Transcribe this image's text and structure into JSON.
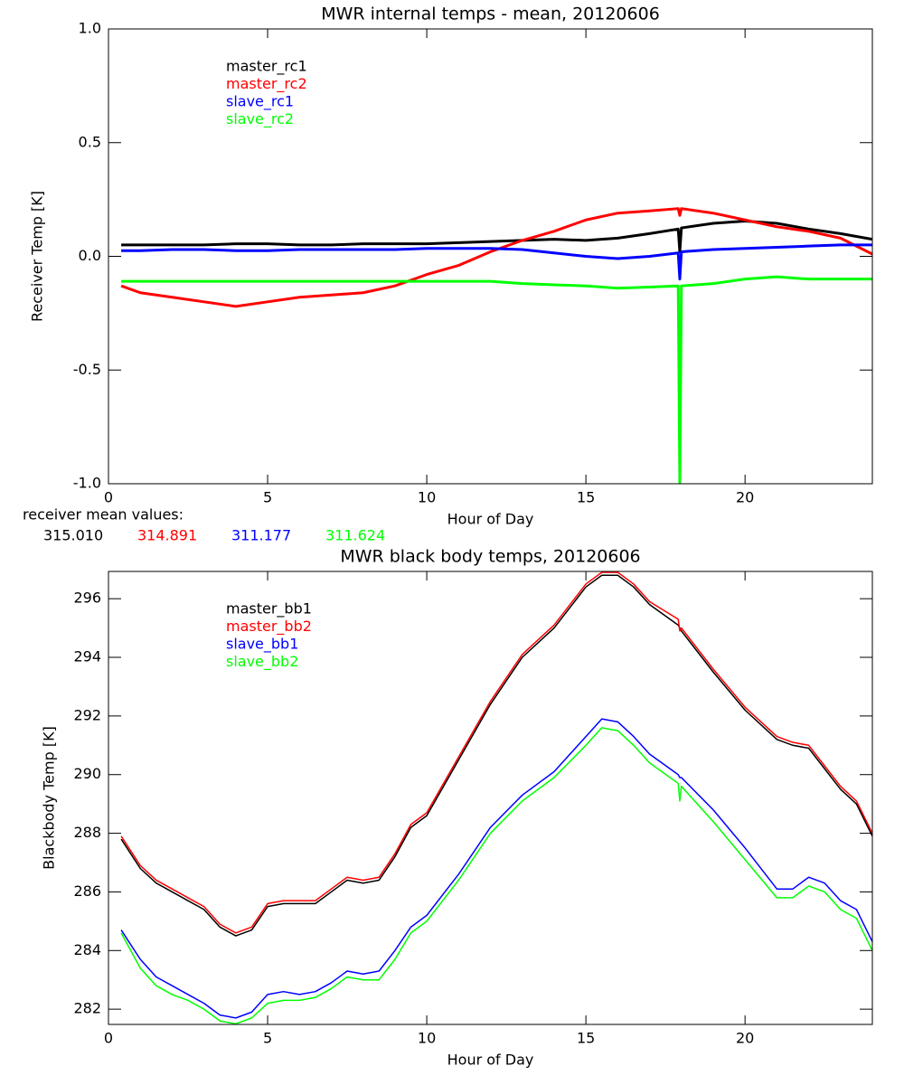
{
  "chart_data": [
    {
      "type": "line",
      "title": "MWR internal temps - mean, 20120606",
      "x_label": "Hour of Day",
      "y_label": "Receiver Temp [K]",
      "xlim": [
        0,
        24
      ],
      "xticks": [
        0,
        5,
        10,
        15,
        20
      ],
      "ylim": [
        -1,
        1
      ],
      "yticks": [
        {
          "value": 1,
          "label": "1.0"
        },
        {
          "value": 0.5,
          "label": "0.5"
        },
        {
          "value": 0,
          "label": "0.0"
        },
        {
          "value": -0.5,
          "label": "-0.5"
        },
        {
          "value": -1,
          "label": "-1.0"
        }
      ],
      "legend": "upper left",
      "x": [
        0.4,
        1,
        2,
        3,
        4,
        5,
        6,
        7,
        8,
        9,
        10,
        11,
        12,
        13,
        14,
        15,
        16,
        17,
        17.9,
        17.95,
        18,
        19,
        20,
        21,
        22,
        23,
        24
      ],
      "series": [
        {
          "name": "master_rc1",
          "color": "#000000",
          "values": [
            0.05,
            0.05,
            0.05,
            0.05,
            0.055,
            0.055,
            0.05,
            0.05,
            0.055,
            0.055,
            0.055,
            0.06,
            0.065,
            0.07,
            0.075,
            0.07,
            0.08,
            0.1,
            0.12,
            0.02,
            0.125,
            0.145,
            0.155,
            0.145,
            0.12,
            0.1,
            0.075
          ]
        },
        {
          "name": "master_rc2",
          "color": "#ff0000",
          "values": [
            -0.13,
            -0.16,
            -0.18,
            -0.2,
            -0.22,
            -0.2,
            -0.18,
            -0.17,
            -0.16,
            -0.13,
            -0.08,
            -0.04,
            0.02,
            0.07,
            0.11,
            0.16,
            0.19,
            0.2,
            0.21,
            0.18,
            0.21,
            0.19,
            0.16,
            0.13,
            0.11,
            0.08,
            0.01
          ]
        },
        {
          "name": "slave_rc1",
          "color": "#0000ff",
          "values": [
            0.025,
            0.025,
            0.03,
            0.03,
            0.025,
            0.025,
            0.03,
            0.03,
            0.03,
            0.03,
            0.035,
            0.035,
            0.035,
            0.03,
            0.015,
            0,
            -0.01,
            0,
            0.015,
            -0.1,
            0.02,
            0.03,
            0.035,
            0.04,
            0.045,
            0.05,
            0.05
          ]
        },
        {
          "name": "slave_rc2",
          "color": "#00ff00",
          "values": [
            -0.11,
            -0.11,
            -0.11,
            -0.11,
            -0.11,
            -0.11,
            -0.11,
            -0.11,
            -0.11,
            -0.11,
            -0.11,
            -0.11,
            -0.11,
            -0.12,
            -0.125,
            -0.13,
            -0.14,
            -0.135,
            -0.13,
            -1.0,
            -0.13,
            -0.12,
            -0.1,
            -0.09,
            -0.1,
            -0.1,
            -0.1
          ]
        }
      ],
      "receiver_means": {
        "label": "receiver mean values:",
        "values": [
          315.01,
          314.891,
          311.177,
          311.624
        ],
        "value_labels": [
          "315.010",
          "314.891",
          "311.177",
          "311.624"
        ]
      }
    },
    {
      "type": "line",
      "title": "MWR black body temps, 20120606",
      "x_label": "Hour of Day",
      "y_label": "Blackbody Temp [K]",
      "xlim": [
        0,
        24
      ],
      "xticks": [
        0,
        5,
        10,
        15,
        20
      ],
      "ylim": [
        281.48,
        296.93
      ],
      "yticks": [
        282,
        284,
        286,
        288,
        290,
        292,
        294,
        296
      ],
      "legend": "upper left",
      "x": [
        0.4,
        1,
        1.5,
        2,
        2.5,
        3,
        3.5,
        4,
        4.5,
        5,
        5.5,
        6,
        6.5,
        7,
        7.5,
        8,
        8.5,
        9,
        9.5,
        10,
        11,
        12,
        13,
        14,
        15,
        15.5,
        16,
        16.5,
        17,
        17.9,
        17.95,
        18,
        19,
        20,
        21,
        21.5,
        22,
        22.5,
        23,
        23.5,
        24
      ],
      "series": [
        {
          "name": "master_bb1",
          "color": "#000000",
          "values": [
            287.8,
            286.8,
            286.3,
            286.0,
            285.7,
            285.4,
            284.8,
            284.5,
            284.7,
            285.5,
            285.6,
            285.6,
            285.6,
            286.0,
            286.4,
            286.3,
            286.4,
            287.2,
            288.2,
            288.6,
            290.5,
            292.4,
            294.0,
            295.0,
            296.4,
            296.8,
            296.8,
            296.4,
            295.8,
            295.1,
            295.0,
            294.9,
            293.5,
            292.2,
            291.2,
            291.0,
            290.9,
            290.2,
            289.5,
            289.0,
            287.9
          ]
        },
        {
          "name": "master_bb2",
          "color": "#ff0000",
          "values": [
            287.9,
            286.9,
            286.4,
            286.1,
            285.8,
            285.5,
            284.9,
            284.6,
            284.8,
            285.6,
            285.7,
            285.7,
            285.7,
            286.1,
            286.5,
            286.4,
            286.5,
            287.3,
            288.3,
            288.7,
            290.6,
            292.5,
            294.1,
            295.1,
            296.5,
            296.9,
            296.9,
            296.5,
            295.9,
            295.3,
            294.9,
            295.0,
            293.6,
            292.3,
            291.3,
            291.1,
            291.0,
            290.3,
            289.6,
            289.1,
            288.0
          ]
        },
        {
          "name": "slave_bb1",
          "color": "#0000ff",
          "values": [
            284.7,
            283.7,
            283.1,
            282.8,
            282.5,
            282.2,
            281.8,
            281.7,
            281.9,
            282.5,
            282.6,
            282.5,
            282.6,
            282.9,
            283.3,
            283.2,
            283.3,
            284.0,
            284.8,
            285.2,
            286.6,
            288.2,
            289.3,
            290.1,
            291.3,
            291.9,
            291.8,
            291.3,
            290.7,
            290.0,
            289.9,
            289.9,
            288.8,
            287.5,
            286.1,
            286.1,
            286.5,
            286.3,
            285.7,
            285.4,
            284.3
          ]
        },
        {
          "name": "slave_bb2",
          "color": "#00ff00",
          "values": [
            284.6,
            283.4,
            282.8,
            282.5,
            282.3,
            282.0,
            281.6,
            281.5,
            281.7,
            282.2,
            282.3,
            282.3,
            282.4,
            282.7,
            283.1,
            283.0,
            283.0,
            283.7,
            284.6,
            285.0,
            286.4,
            288.0,
            289.1,
            289.9,
            291.0,
            291.6,
            291.5,
            291.0,
            290.4,
            289.7,
            289.1,
            289.6,
            288.4,
            287.1,
            285.8,
            285.8,
            286.2,
            286.0,
            285.4,
            285.1,
            284.0
          ]
        }
      ]
    }
  ]
}
